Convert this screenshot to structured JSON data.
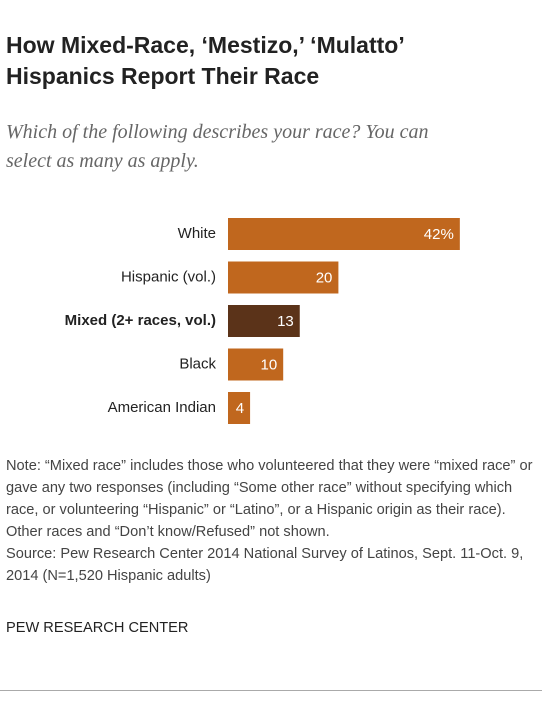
{
  "chart_data": {
    "type": "bar",
    "orientation": "horizontal",
    "title": "How Mixed-Race, ‘Mestizo,’ ‘Mulatto’ Hispanics Report Their Race",
    "subtitle": "Which of the following describes your race? You can select as many as apply.",
    "categories": [
      "White",
      "Hispanic (vol.)",
      "Mixed (2+ races, vol.)",
      "Black",
      "American Indian"
    ],
    "values": [
      42,
      20,
      13,
      10,
      4
    ],
    "value_labels": [
      "42%",
      "20",
      "13",
      "10",
      "4"
    ],
    "colors": [
      "#c0671e",
      "#c0671e",
      "#5b3319",
      "#c0671e",
      "#c0671e"
    ],
    "note": "Note: “Mixed race” includes those who volunteered that they were “mixed race” or gave any two responses (including “Some other race” without specifying which race, or volunteering “Hispanic” or “Latino”, or a Hispanic origin as their race). Other races and “Don’t know/Refused” not shown.",
    "source": "Source: Pew Research Center 2014 National Survey of Latinos, Sept. 11-Oct. 9, 2014 (N=1,520 Hispanic adults)",
    "credit": "PEW RESEARCH CENTER"
  }
}
